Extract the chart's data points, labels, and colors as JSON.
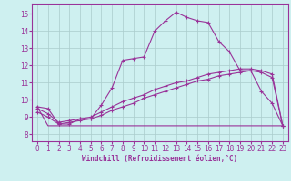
{
  "xlabel": "Windchill (Refroidissement éolien,°C)",
  "background_color": "#cef0f0",
  "grid_color": "#aacccc",
  "line_color": "#993399",
  "x_ticks": [
    0,
    1,
    2,
    3,
    4,
    5,
    6,
    7,
    8,
    9,
    10,
    11,
    12,
    13,
    14,
    15,
    16,
    17,
    18,
    19,
    20,
    21,
    22,
    23
  ],
  "y_ticks": [
    8,
    9,
    10,
    11,
    12,
    13,
    14,
    15
  ],
  "ylim": [
    7.6,
    15.6
  ],
  "xlim": [
    -0.5,
    23.5
  ],
  "line1_x": [
    0,
    1,
    2,
    3,
    4,
    5,
    6,
    7,
    8,
    9,
    10,
    11,
    12,
    13,
    14,
    15,
    16,
    17,
    18,
    19,
    20,
    21,
    22,
    23
  ],
  "line1_y": [
    9.6,
    9.5,
    8.6,
    8.6,
    8.9,
    8.9,
    9.7,
    10.7,
    12.3,
    12.4,
    12.5,
    14.0,
    14.6,
    15.1,
    14.8,
    14.6,
    14.5,
    13.4,
    12.8,
    11.7,
    11.7,
    10.5,
    9.8,
    8.5
  ],
  "line2_x": [
    0,
    1,
    2,
    3,
    4,
    5,
    6,
    7,
    8,
    9,
    10,
    11,
    12,
    13,
    14,
    15,
    16,
    17,
    18,
    19,
    20,
    21,
    22,
    23
  ],
  "line2_y": [
    9.6,
    8.5,
    8.5,
    8.5,
    8.5,
    8.5,
    8.5,
    8.5,
    8.5,
    8.5,
    8.5,
    8.5,
    8.5,
    8.5,
    8.5,
    8.5,
    8.5,
    8.5,
    8.5,
    8.5,
    8.5,
    8.5,
    8.5,
    8.5
  ],
  "line3_x": [
    0,
    1,
    2,
    3,
    4,
    5,
    6,
    7,
    8,
    9,
    10,
    11,
    12,
    13,
    14,
    15,
    16,
    17,
    18,
    19,
    20,
    21,
    22,
    23
  ],
  "line3_y": [
    9.3,
    9.0,
    8.6,
    8.7,
    8.8,
    8.9,
    9.1,
    9.4,
    9.6,
    9.8,
    10.1,
    10.3,
    10.5,
    10.7,
    10.9,
    11.1,
    11.2,
    11.4,
    11.5,
    11.6,
    11.7,
    11.6,
    11.3,
    8.5
  ],
  "line4_x": [
    0,
    1,
    2,
    3,
    4,
    5,
    6,
    7,
    8,
    9,
    10,
    11,
    12,
    13,
    14,
    15,
    16,
    17,
    18,
    19,
    20,
    21,
    22,
    23
  ],
  "line4_y": [
    9.5,
    9.2,
    8.7,
    8.8,
    8.9,
    9.0,
    9.3,
    9.6,
    9.9,
    10.1,
    10.3,
    10.6,
    10.8,
    11.0,
    11.1,
    11.3,
    11.5,
    11.6,
    11.7,
    11.8,
    11.8,
    11.7,
    11.5,
    8.5
  ],
  "tick_fontsize": 5.5,
  "xlabel_fontsize": 5.5
}
